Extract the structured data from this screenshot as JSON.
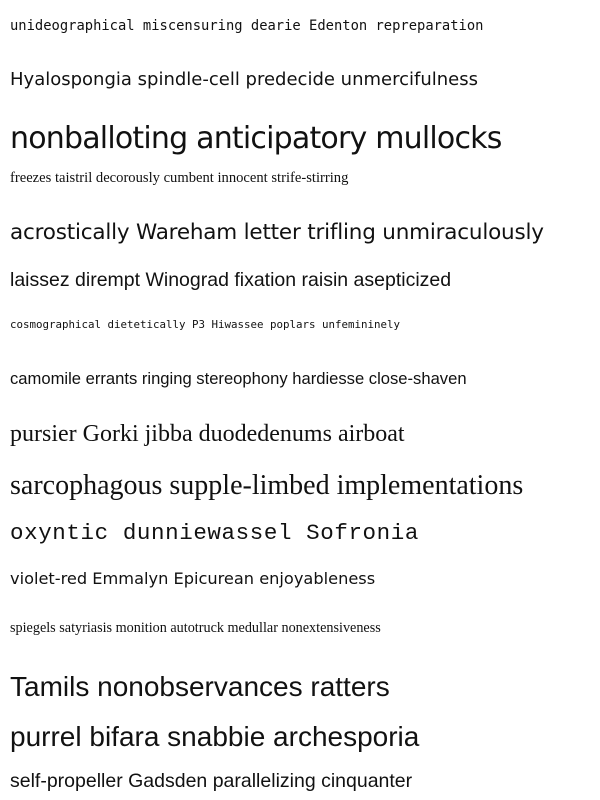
{
  "lines": [
    "unideographical miscensuring dearie Edenton repreparation",
    "Hyalospongia spindle-cell predecide unmercifulness",
    "nonballoting anticipatory mullocks",
    "freezes taistril decorously cumbent innocent strife-stirring",
    "acrostically Wareham letter trifling unmiraculously",
    "laissez dirempt Winograd fixation raisin asepticized",
    "cosmographical dietetically P3 Hiwassee poplars unfemininely",
    "camomile errants ringing stereophony hardiesse close-shaven",
    "pursier Gorki jibba duodedenums airboat",
    "sarcophagous supple-limbed implementations",
    "oxyntic dunniewassel Sofronia",
    "violet-red Emmalyn Epicurean enjoyableness",
    "spiegels satyriasis monition autotruck medullar nonextensiveness",
    "Tamils nonobservances ratters",
    "purrel bifara snabbie archesporia",
    "self-propeller Gadsden parallelizing cinquanter"
  ]
}
